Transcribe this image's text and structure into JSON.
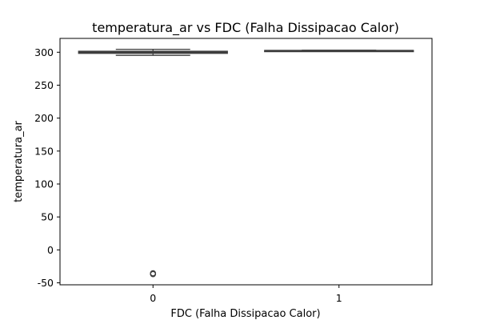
{
  "chart_data": {
    "type": "box",
    "title": "temperatura_ar vs FDC (Falha Dissipacao Calor)",
    "xlabel": "FDC (Falha Dissipacao Calor)",
    "ylabel": "temperatura_ar",
    "categories": [
      "0",
      "1"
    ],
    "ylim": [
      -53,
      321
    ],
    "yticks": [
      -50,
      0,
      50,
      100,
      150,
      200,
      250,
      300
    ],
    "grid": false,
    "colors": {
      "box_stroke": "#3d3d3d",
      "box_fill": "#ffffff",
      "axis": "#000000"
    },
    "boxes": [
      {
        "category": "0",
        "whisker_low": 295.3,
        "q1": 298.3,
        "median": 300.0,
        "q3": 301.5,
        "whisker_high": 304.5,
        "outliers": [
          -35.5,
          -36.2,
          -36.8
        ]
      },
      {
        "category": "1",
        "whisker_low": 301.5,
        "q1": 302.0,
        "median": 302.4,
        "q3": 302.7,
        "whisker_high": 303.0,
        "outliers": []
      }
    ]
  }
}
